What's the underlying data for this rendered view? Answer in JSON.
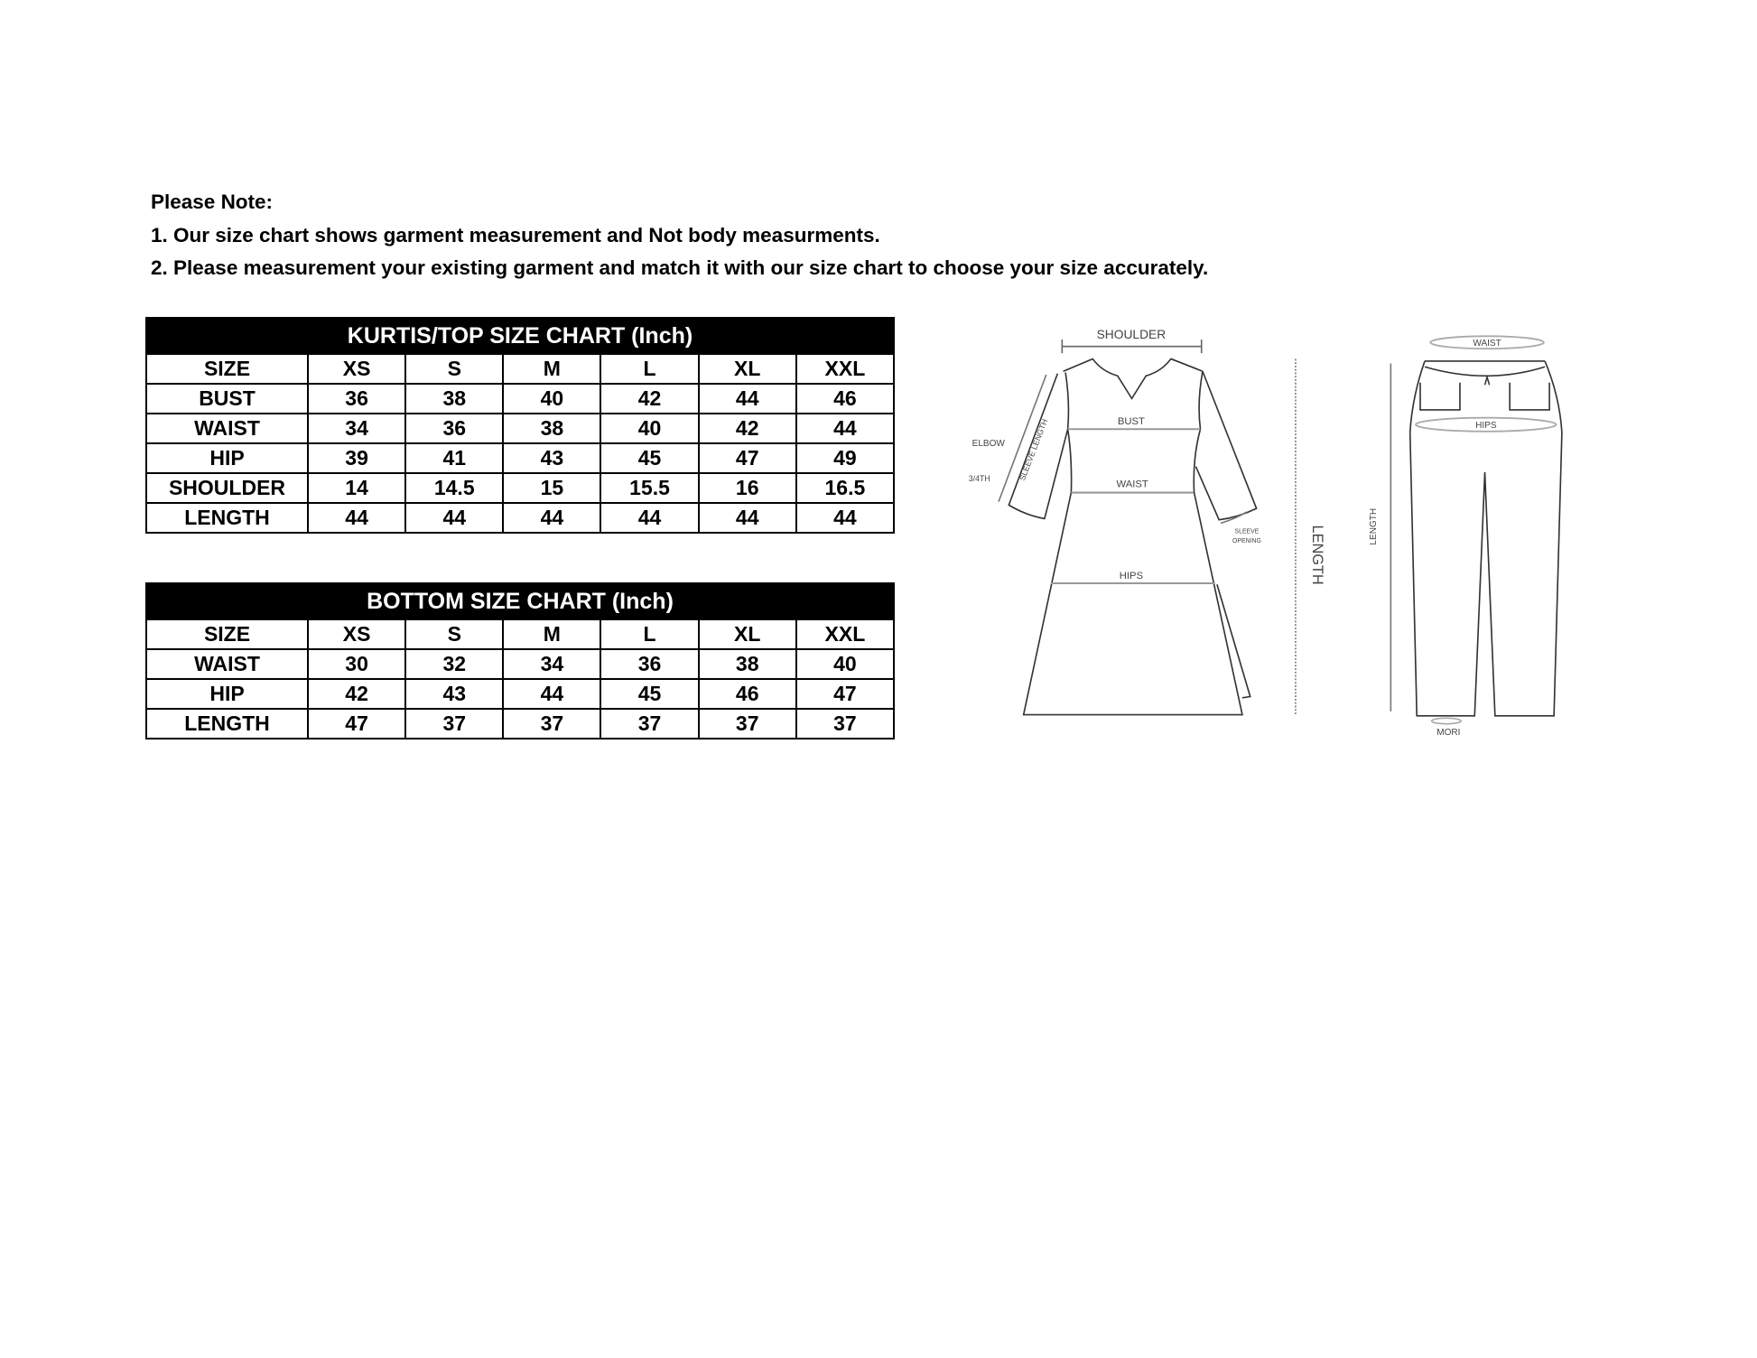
{
  "notes": {
    "heading": "Please Note:",
    "lines": [
      "1. Our size chart shows garment measurement and Not body measurments.",
      "2. Please measurement your existing garment and match it with our size chart to choose your size accurately."
    ]
  },
  "top_chart": {
    "title": "KURTIS/TOP SIZE CHART (Inch)",
    "header": [
      "SIZE",
      "XS",
      "S",
      "M",
      "L",
      "XL",
      "XXL"
    ],
    "rows": [
      [
        "BUST",
        "36",
        "38",
        "40",
        "42",
        "44",
        "46"
      ],
      [
        "WAIST",
        "34",
        "36",
        "38",
        "40",
        "42",
        "44"
      ],
      [
        "HIP",
        "39",
        "41",
        "43",
        "45",
        "47",
        "49"
      ],
      [
        "SHOULDER",
        "14",
        "14.5",
        "15",
        "15.5",
        "16",
        "16.5"
      ],
      [
        "LENGTH",
        "44",
        "44",
        "44",
        "44",
        "44",
        "44"
      ]
    ]
  },
  "bottom_chart": {
    "title": "BOTTOM SIZE CHART (Inch)",
    "header": [
      "SIZE",
      "XS",
      "S",
      "M",
      "L",
      "XL",
      "XXL"
    ],
    "rows": [
      [
        "WAIST",
        "30",
        "32",
        "34",
        "36",
        "38",
        "40"
      ],
      [
        "HIP",
        "42",
        "43",
        "44",
        "45",
        "46",
        "47"
      ],
      [
        "LENGTH",
        "47",
        "37",
        "37",
        "37",
        "37",
        "37"
      ]
    ]
  },
  "kurta_diagram": {
    "shoulder": "SHOULDER",
    "bust": "BUST",
    "waist": "WAIST",
    "hips": "HIPS",
    "elbow": "ELBOW",
    "three_fourth": "3/4TH",
    "sleeve_length": "SLEEVE LENGTH",
    "sleeve_opening_1": "SLEEVE",
    "sleeve_opening_2": "OPENING",
    "length": "LENGTH"
  },
  "pants_diagram": {
    "waist": "WAIST",
    "hips": "HIPS",
    "length": "LENGTH",
    "mori": "MORI"
  }
}
